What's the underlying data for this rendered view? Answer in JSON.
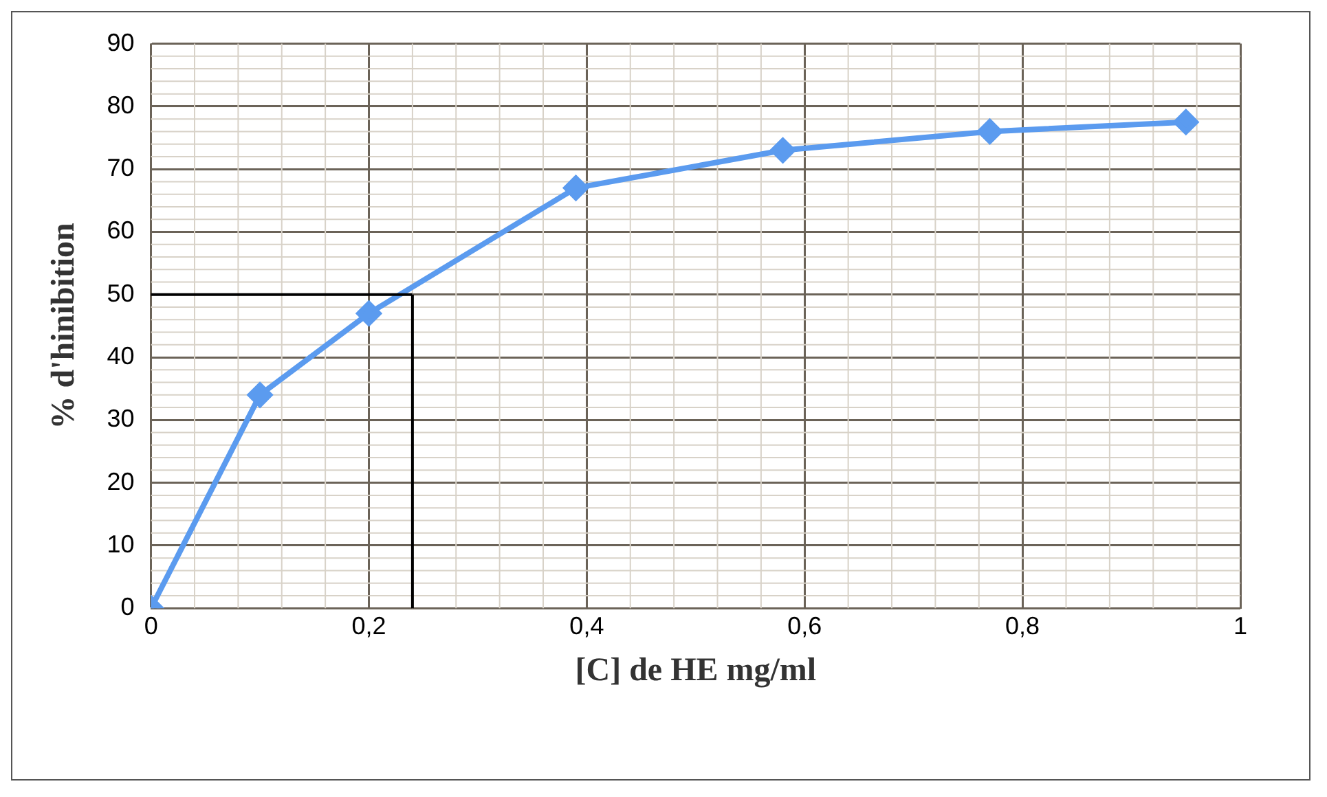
{
  "chart_data": {
    "type": "line",
    "xlabel": "[C] de HE mg/ml",
    "ylabel": "% d'hinibition",
    "x": [
      0,
      0.1,
      0.2,
      0.39,
      0.58,
      0.77,
      0.95
    ],
    "series": [
      {
        "color": "#5b9bef",
        "values": [
          0,
          34,
          47,
          67,
          73,
          76,
          77.5
        ]
      }
    ],
    "xlim": [
      0,
      1
    ],
    "xticks": [
      {
        "value": 0,
        "label": "0"
      },
      {
        "value": 0.2,
        "label": "0,2"
      },
      {
        "value": 0.4,
        "label": "0,4"
      },
      {
        "value": 0.6,
        "label": "0,6"
      },
      {
        "value": 0.8,
        "label": "0,8"
      },
      {
        "value": 1,
        "label": "1"
      }
    ],
    "ylim": [
      0,
      90
    ],
    "yticks": [
      0,
      10,
      20,
      30,
      40,
      50,
      60,
      70,
      80,
      90
    ],
    "ref_lines": [
      {
        "axis": "y",
        "value": 50,
        "color": "#000000"
      },
      {
        "axis": "x",
        "value": 0.24,
        "color": "#000000"
      }
    ],
    "grid": true,
    "legend": false,
    "marker": "diamond",
    "line_style": "solid"
  }
}
